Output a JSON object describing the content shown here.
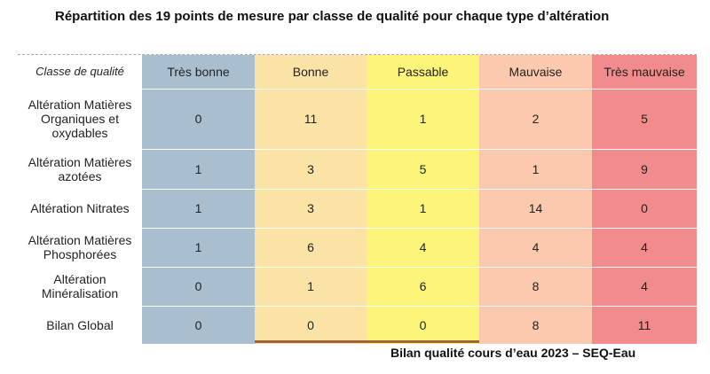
{
  "title": "Répartition des 19 points de mesure par classe de qualité pour chaque type d’altération",
  "table": {
    "header": [
      "Classe de qualité",
      "Très bonne",
      "Bonne",
      "Passable",
      "Mauvaise",
      "Très mauvaise"
    ],
    "rows": [
      [
        "Altération Matières Organiques et oxydables",
        0,
        11,
        1,
        2,
        5
      ],
      [
        "Altération Matières azotées",
        1,
        3,
        5,
        1,
        9
      ],
      [
        "Altération Nitrates",
        1,
        3,
        1,
        14,
        0
      ],
      [
        "Altération Matières Phosphorées",
        1,
        6,
        4,
        4,
        4
      ],
      [
        "Altération Minéralisation",
        0,
        1,
        6,
        8,
        4
      ],
      [
        "Bilan Global",
        0,
        0,
        0,
        8,
        11
      ]
    ]
  },
  "footer": "Bilan qualité cours d’eau 2023 – SEQ-Eau"
}
